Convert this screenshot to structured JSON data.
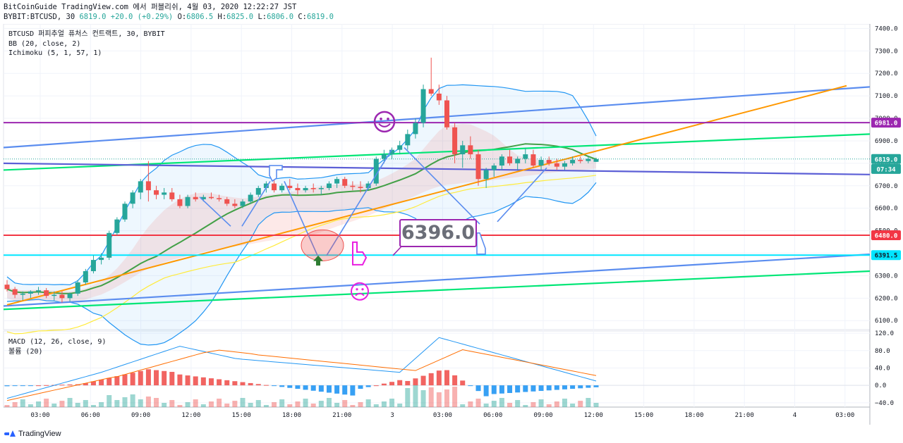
{
  "header": {
    "title_line": "BitCoinGuide TradingView.com 에서 퍼블리쉬, 4월 03, 2020 12:22:27 JST",
    "symbol": "BYBIT:BTCUSD, 30",
    "last": "6819.0",
    "change": "+20.0 (+0.29%)",
    "open_label": "O:",
    "open": "6806.5",
    "high_label": "H:",
    "high": "6825.0",
    "low_label": "L:",
    "low": "6806.0",
    "close_label": "C:",
    "close": "6819.0"
  },
  "legend": {
    "instrument": "BTCUSD 퍼피추얼 퓨처스 컨트랙트, 30, BYBIT",
    "bb": "BB (20, close, 2)",
    "ichimoku": "Ichimoku (5, 1, 57, 1)",
    "macd": "MACD (12, 26, close, 9)",
    "volume": "볼륨 (20)"
  },
  "annotation": {
    "text": "6396.0"
  },
  "footer": {
    "brand": "TradingView"
  },
  "colors": {
    "up": "#26a69a",
    "down": "#ef5350",
    "bb": "#2196f3",
    "ma": "#43a047",
    "orange": "#ff9800",
    "purple": "#9c27b0",
    "red": "#f23645",
    "cyan": "#00e5ff",
    "green": "#00e676",
    "blue_trend": "#5b8def",
    "navy": "#5c5fd6",
    "yellow": "#ffeb3b",
    "magenta": "#e91ee0",
    "macd_line": "#2196f3",
    "signal_line": "#ff6d00"
  },
  "chart_data": [
    {
      "type": "candlestick",
      "panel": "price",
      "yticks": [
        6100,
        6200,
        6300,
        6400,
        6500,
        6600,
        6700,
        6800,
        6900,
        7000,
        7100,
        7200,
        7300,
        7400
      ],
      "ytick_labels": [
        "6100.0",
        "6200.0",
        "6300.0",
        "6400.0",
        "6500.0",
        "6600.0",
        "6700.0",
        "6800.0",
        "6900.0",
        "7000.0",
        "7100.0",
        "7200.0",
        "7300.0",
        "7400.0"
      ],
      "ylim": [
        6060,
        7420
      ],
      "x_labels": [
        "03:00",
        "06:00",
        "09:00",
        "12:00",
        "15:00",
        "18:00",
        "21:00",
        "3",
        "03:00",
        "06:00",
        "09:00",
        "12:00",
        "15:00",
        "18:00",
        "21:00",
        "4",
        "03:00"
      ],
      "price_tags": [
        {
          "label": "6981.0",
          "value": 6981,
          "color": "#9c27b0"
        },
        {
          "label": "6819.0",
          "value": 6819,
          "color": "#26a69a"
        },
        {
          "label": "07:34",
          "value": 6775,
          "color": "#26a69a"
        },
        {
          "label": "6480.0",
          "value": 6480,
          "color": "#f23645"
        },
        {
          "label": "6391.5",
          "value": 6391.5,
          "color": "#00e5ff"
        }
      ],
      "horizontal_levels": [
        {
          "value": 6981,
          "color": "#9c27b0"
        },
        {
          "value": 6480,
          "color": "#f23645"
        },
        {
          "value": 6391.5,
          "color": "#00e5ff"
        }
      ],
      "candles": [
        [
          6260,
          6280,
          6230,
          6240
        ],
        [
          6240,
          6250,
          6200,
          6215
        ],
        [
          6215,
          6230,
          6190,
          6220
        ],
        [
          6220,
          6235,
          6200,
          6230
        ],
        [
          6230,
          6250,
          6215,
          6235
        ],
        [
          6235,
          6245,
          6200,
          6210
        ],
        [
          6210,
          6230,
          6190,
          6215
        ],
        [
          6215,
          6230,
          6180,
          6200
        ],
        [
          6200,
          6225,
          6185,
          6220
        ],
        [
          6220,
          6280,
          6210,
          6270
        ],
        [
          6270,
          6330,
          6260,
          6320
        ],
        [
          6320,
          6390,
          6310,
          6370
        ],
        [
          6370,
          6400,
          6350,
          6380
        ],
        [
          6380,
          6500,
          6370,
          6490
        ],
        [
          6490,
          6560,
          6480,
          6550
        ],
        [
          6550,
          6630,
          6540,
          6620
        ],
        [
          6620,
          6680,
          6600,
          6670
        ],
        [
          6670,
          6730,
          6640,
          6720
        ],
        [
          6720,
          6810,
          6630,
          6680
        ],
        [
          6680,
          6700,
          6640,
          6660
        ],
        [
          6660,
          6690,
          6640,
          6670
        ],
        [
          6670,
          6690,
          6630,
          6640
        ],
        [
          6640,
          6660,
          6600,
          6610
        ],
        [
          6610,
          6660,
          6600,
          6650
        ],
        [
          6650,
          6670,
          6630,
          6640
        ],
        [
          6640,
          6660,
          6630,
          6650
        ],
        [
          6650,
          6670,
          6640,
          6645
        ],
        [
          6645,
          6660,
          6630,
          6640
        ],
        [
          6640,
          6650,
          6610,
          6620
        ],
        [
          6620,
          6640,
          6600,
          6610
        ],
        [
          6610,
          6640,
          6600,
          6630
        ],
        [
          6630,
          6670,
          6620,
          6660
        ],
        [
          6660,
          6700,
          6650,
          6690
        ],
        [
          6690,
          6720,
          6670,
          6710
        ],
        [
          6710,
          6730,
          6670,
          6680
        ],
        [
          6680,
          6710,
          6670,
          6700
        ],
        [
          6700,
          6730,
          6680,
          6690
        ],
        [
          6690,
          6710,
          6660,
          6680
        ],
        [
          6680,
          6700,
          6670,
          6690
        ],
        [
          6690,
          6710,
          6670,
          6685
        ],
        [
          6685,
          6700,
          6660,
          6690
        ],
        [
          6690,
          6720,
          6680,
          6710
        ],
        [
          6710,
          6740,
          6690,
          6730
        ],
        [
          6730,
          6740,
          6690,
          6700
        ],
        [
          6700,
          6720,
          6680,
          6695
        ],
        [
          6695,
          6720,
          6670,
          6690
        ],
        [
          6690,
          6720,
          6680,
          6710
        ],
        [
          6710,
          6830,
          6700,
          6820
        ],
        [
          6820,
          6860,
          6800,
          6840
        ],
        [
          6840,
          6870,
          6820,
          6860
        ],
        [
          6860,
          6900,
          6840,
          6880
        ],
        [
          6880,
          6950,
          6860,
          6930
        ],
        [
          6930,
          7000,
          6910,
          6980
        ],
        [
          6980,
          7150,
          6960,
          7130
        ],
        [
          7130,
          7270,
          7100,
          7110
        ],
        [
          7110,
          7150,
          7060,
          7080
        ],
        [
          7080,
          7100,
          6950,
          6960
        ],
        [
          6960,
          6980,
          6800,
          6840
        ],
        [
          6840,
          6900,
          6780,
          6880
        ],
        [
          6880,
          6920,
          6820,
          6840
        ],
        [
          6840,
          6860,
          6700,
          6730
        ],
        [
          6730,
          6780,
          6690,
          6770
        ],
        [
          6770,
          6800,
          6740,
          6790
        ],
        [
          6790,
          6840,
          6770,
          6830
        ],
        [
          6830,
          6860,
          6790,
          6800
        ],
        [
          6800,
          6830,
          6770,
          6820
        ],
        [
          6820,
          6870,
          6800,
          6840
        ],
        [
          6840,
          6860,
          6780,
          6790
        ],
        [
          6790,
          6830,
          6770,
          6815
        ],
        [
          6815,
          6830,
          6790,
          6800
        ],
        [
          6800,
          6820,
          6770,
          6785
        ],
        [
          6785,
          6810,
          6770,
          6800
        ],
        [
          6800,
          6830,
          6790,
          6815
        ],
        [
          6815,
          6830,
          6800,
          6810
        ],
        [
          6810,
          6830,
          6800,
          6820
        ],
        [
          6806.5,
          6825,
          6806,
          6819
        ]
      ]
    },
    {
      "type": "bar",
      "panel": "macd",
      "yticks": [
        120,
        80,
        40,
        0,
        -40
      ],
      "ytick_labels": [
        "120.0",
        "80.0",
        "40.0",
        "0.0",
        "−40.0"
      ],
      "ylim": [
        -50,
        125
      ]
    }
  ]
}
